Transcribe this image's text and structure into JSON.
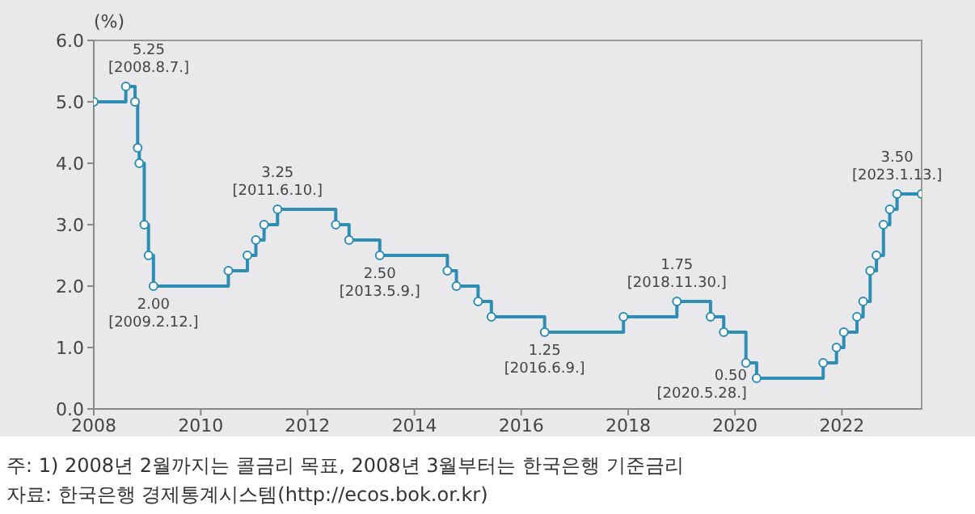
{
  "chart_data": {
    "type": "step",
    "ylabel": "(%)",
    "x": [
      "2008-01-01",
      "2008-08-07",
      "2008-10-09",
      "2008-10-27",
      "2008-11-07",
      "2008-12-11",
      "2009-01-09",
      "2009-02-12",
      "2010-07-09",
      "2010-11-16",
      "2011-01-13",
      "2011-03-10",
      "2011-06-10",
      "2012-07-12",
      "2012-10-11",
      "2013-05-09",
      "2014-08-14",
      "2014-10-15",
      "2015-03-12",
      "2015-06-11",
      "2016-06-09",
      "2017-11-30",
      "2018-11-30",
      "2019-07-18",
      "2019-10-16",
      "2020-03-16",
      "2020-05-28",
      "2021-08-26",
      "2021-11-25",
      "2022-01-14",
      "2022-04-14",
      "2022-05-26",
      "2022-07-13",
      "2022-08-25",
      "2022-10-12",
      "2022-11-24",
      "2023-01-13",
      "2023-06-30"
    ],
    "series": [
      {
        "color": "#2e8db3",
        "values": [
          5.0,
          5.25,
          5.0,
          4.25,
          4.0,
          3.0,
          2.5,
          2.0,
          2.25,
          2.5,
          2.75,
          3.0,
          3.25,
          3.0,
          2.75,
          2.5,
          2.25,
          2.0,
          1.75,
          1.5,
          1.25,
          1.5,
          1.75,
          1.5,
          1.25,
          0.75,
          0.5,
          0.75,
          1.0,
          1.25,
          1.5,
          1.75,
          2.25,
          2.5,
          3.0,
          3.25,
          3.5,
          3.5
        ]
      }
    ],
    "xlim": [
      "2008-01-01",
      "2023-06-30"
    ],
    "xticks": [
      "2008",
      "2010",
      "2012",
      "2014",
      "2016",
      "2018",
      "2020",
      "2022"
    ],
    "ylim": [
      0,
      6
    ],
    "yticks": [
      {
        "value": 0,
        "label": "0.0"
      },
      {
        "value": 1,
        "label": "1.0"
      },
      {
        "value": 2,
        "label": "2.0"
      },
      {
        "value": 3,
        "label": "3.0"
      },
      {
        "value": 4,
        "label": "4.0"
      },
      {
        "value": 5,
        "label": "5.0"
      },
      {
        "value": 6,
        "label": "6.0"
      }
    ],
    "marker": "circle",
    "line_style": "solid",
    "grid": false,
    "legend": false,
    "annotations": [
      {
        "text": "5.25\n[2008.8.7.]",
        "x": "2008-08-07",
        "y": 5.25
      },
      {
        "text": "2.00\n[2009.2.12.]",
        "x": "2009-02-12",
        "y": 2.0
      },
      {
        "text": "3.25\n[2011.6.10.]",
        "x": "2011-06-10",
        "y": 3.25
      },
      {
        "text": "2.50\n[2013.5.9.]",
        "x": "2013-05-09",
        "y": 2.5
      },
      {
        "text": "1.25\n[2016.6.9.]",
        "x": "2016-06-09",
        "y": 1.25
      },
      {
        "text": "1.75\n[2018.11.30.]",
        "x": "2018-11-30",
        "y": 1.75
      },
      {
        "text": "0.50\n[2020.5.28.]",
        "x": "2020-05-28",
        "y": 0.5
      },
      {
        "text": "3.50\n[2023.1.13.]",
        "x": "2023-01-13",
        "y": 3.5
      },
      "주: 1) 2008년 2월까지는 콜금리 목표, 2008년 3월부터는 한국은행 기준금리",
      "자료: 한국은행 경제통계시스템(http://ecos.bok.or.kr)"
    ]
  }
}
